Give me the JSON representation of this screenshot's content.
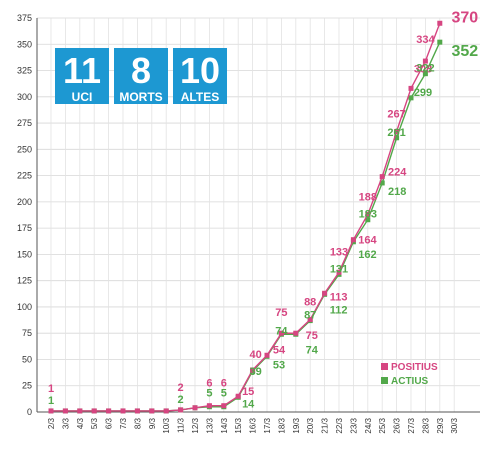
{
  "stat_boxes": [
    {
      "value": "11",
      "label": "UCI"
    },
    {
      "value": "8",
      "label": "MORTS"
    },
    {
      "value": "10",
      "label": "ALTES"
    }
  ],
  "legend": [
    {
      "label": "POSITIUS",
      "color": "#d64581"
    },
    {
      "label": "ACTIUS",
      "color": "#52a84a"
    }
  ],
  "chart_data": {
    "type": "line",
    "title": "",
    "xlabel": "",
    "ylabel": "",
    "ylim": [
      0,
      375
    ],
    "yticks": [
      "0",
      "25",
      "50",
      "75",
      "100",
      "125",
      "150",
      "175",
      "200",
      "225",
      "250",
      "275",
      "300",
      "325",
      "350",
      "375"
    ],
    "grid": true,
    "legend_position": "bottom-right",
    "categories": [
      "2/3",
      "3/3",
      "4/3",
      "5/3",
      "6/3",
      "7/3",
      "8/3",
      "9/3",
      "10/3",
      "11/3",
      "12/3",
      "13/3",
      "14/3",
      "15/3",
      "16/3",
      "17/3",
      "18/3",
      "19/3",
      "20/3",
      "21/3",
      "22/3",
      "23/3",
      "24/3",
      "25/3",
      "26/3",
      "27/3",
      "28/3",
      "29/3",
      "30/3"
    ],
    "series": [
      {
        "name": "POSITIUS",
        "color": "#d64581",
        "values": [
          1,
          1,
          1,
          1,
          1,
          1,
          1,
          1,
          1,
          2,
          4,
          6,
          6,
          15,
          40,
          54,
          75,
          75,
          88,
          113,
          133,
          164,
          188,
          224,
          267,
          308,
          334,
          370,
          null
        ],
        "labels": [
          "1",
          "",
          "",
          "",
          "",
          "",
          "",
          "",
          "",
          "2",
          "",
          "6",
          "6",
          "15",
          "40",
          "54",
          "75",
          "75",
          "88",
          "113",
          "133",
          "164",
          "188",
          "224",
          "267",
          "308",
          "334",
          "370",
          ""
        ]
      },
      {
        "name": "ACTIUS",
        "color": "#52a84a",
        "values": [
          1,
          1,
          1,
          1,
          1,
          1,
          1,
          1,
          1,
          2,
          4,
          5,
          5,
          14,
          39,
          53,
          74,
          74,
          87,
          112,
          131,
          162,
          183,
          218,
          261,
          299,
          322,
          352,
          null
        ],
        "labels": [
          "1",
          "",
          "",
          "",
          "",
          "",
          "",
          "",
          "",
          "2",
          "",
          "5",
          "5",
          "14",
          "39",
          "53",
          "74",
          "74",
          "87",
          "112",
          "131",
          "162",
          "183",
          "218",
          "261",
          "299",
          "322",
          "352",
          ""
        ]
      }
    ]
  }
}
